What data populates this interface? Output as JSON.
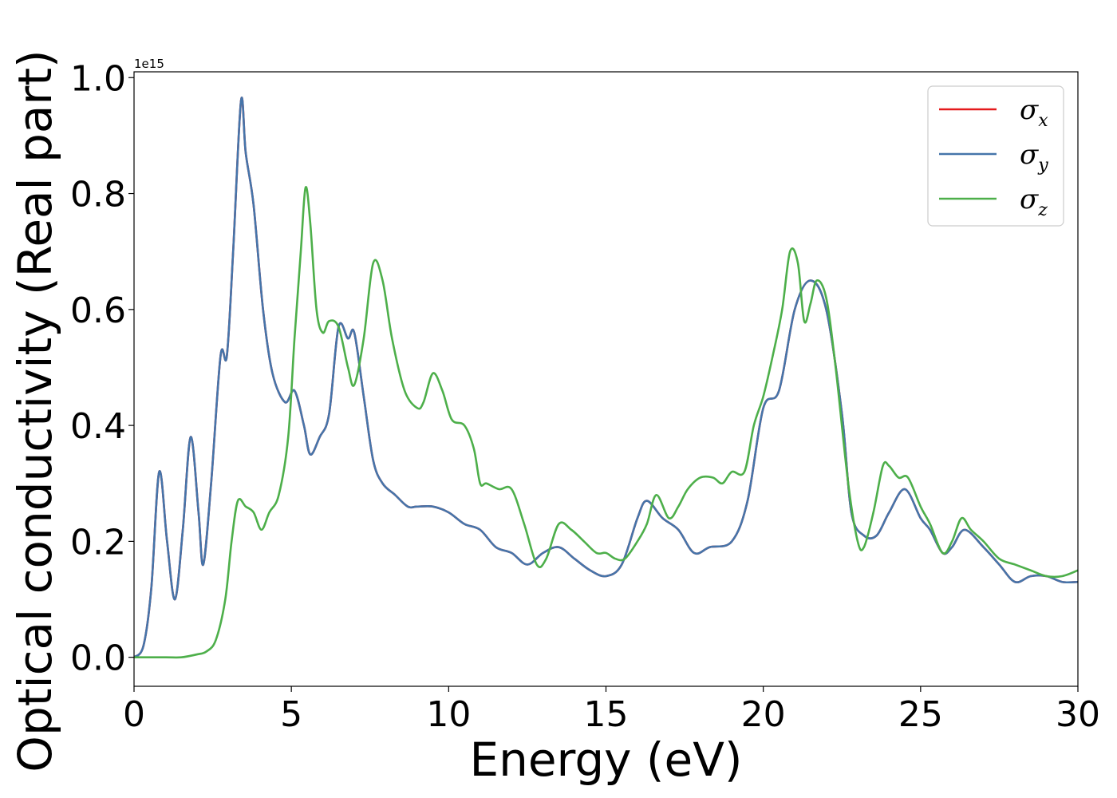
{
  "chart_data": {
    "type": "line",
    "xlabel": "Energy (eV)",
    "ylabel": "Optical conductivity (Real part)",
    "y_offset_text": "1e15",
    "xlim": [
      0,
      30
    ],
    "ylim": [
      -0.05,
      1.01
    ],
    "y_scale_factor": 1000000000000000.0,
    "xticks": [
      0,
      5,
      10,
      15,
      20,
      25,
      30
    ],
    "yticks": [
      0.0,
      0.2,
      0.4,
      0.6,
      0.8,
      1.0
    ],
    "xtick_labels": [
      "0",
      "5",
      "10",
      "15",
      "20",
      "25",
      "30"
    ],
    "ytick_labels": [
      "0.0",
      "0.2",
      "0.4",
      "0.6",
      "0.8",
      "1.0"
    ],
    "grid": false,
    "legend_position": "top-right",
    "series": [
      {
        "name": "σx",
        "legend_symbol": "σ",
        "legend_sub": "x",
        "color": "#e41a1c",
        "hidden_under": "σy",
        "x": [
          0,
          0.3,
          0.55,
          0.8,
          1.05,
          1.3,
          1.55,
          1.8,
          2.05,
          2.2,
          2.45,
          2.75,
          2.95,
          3.15,
          3.4,
          3.55,
          3.8,
          4.1,
          4.4,
          4.8,
          5.1,
          5.4,
          5.6,
          5.9,
          6.2,
          6.5,
          6.8,
          7.0,
          7.3,
          7.6,
          7.9,
          8.3,
          8.7,
          9.0,
          9.5,
          10.0,
          10.5,
          11.0,
          11.5,
          12.0,
          12.5,
          13.0,
          13.5,
          14.0,
          14.5,
          15.0,
          15.5,
          16.0,
          16.3,
          16.8,
          17.3,
          17.8,
          18.3,
          19.0,
          19.5,
          20.0,
          20.5,
          21.0,
          21.5,
          22.0,
          22.5,
          22.8,
          23.2,
          23.6,
          24.0,
          24.5,
          25.0,
          25.3,
          25.7,
          26.0,
          26.4,
          27.0,
          27.5,
          28.0,
          28.5,
          29.0,
          29.5,
          30.0
        ],
        "y": [
          0.0,
          0.02,
          0.12,
          0.32,
          0.2,
          0.1,
          0.22,
          0.38,
          0.25,
          0.16,
          0.3,
          0.52,
          0.52,
          0.7,
          0.96,
          0.87,
          0.78,
          0.6,
          0.49,
          0.44,
          0.46,
          0.4,
          0.35,
          0.38,
          0.42,
          0.57,
          0.55,
          0.56,
          0.45,
          0.34,
          0.3,
          0.28,
          0.26,
          0.26,
          0.26,
          0.25,
          0.23,
          0.22,
          0.19,
          0.18,
          0.16,
          0.18,
          0.19,
          0.17,
          0.15,
          0.14,
          0.16,
          0.24,
          0.27,
          0.24,
          0.22,
          0.18,
          0.19,
          0.2,
          0.27,
          0.43,
          0.46,
          0.6,
          0.65,
          0.6,
          0.42,
          0.25,
          0.21,
          0.21,
          0.25,
          0.29,
          0.24,
          0.22,
          0.18,
          0.19,
          0.22,
          0.19,
          0.16,
          0.13,
          0.14,
          0.14,
          0.13,
          0.13
        ]
      },
      {
        "name": "σy",
        "legend_symbol": "σ",
        "legend_sub": "y",
        "color": "#4575aa",
        "x": [
          0,
          0.3,
          0.55,
          0.8,
          1.05,
          1.3,
          1.55,
          1.8,
          2.05,
          2.2,
          2.45,
          2.75,
          2.95,
          3.15,
          3.4,
          3.55,
          3.8,
          4.1,
          4.4,
          4.8,
          5.1,
          5.4,
          5.6,
          5.9,
          6.2,
          6.5,
          6.8,
          7.0,
          7.3,
          7.6,
          7.9,
          8.3,
          8.7,
          9.0,
          9.5,
          10.0,
          10.5,
          11.0,
          11.5,
          12.0,
          12.5,
          13.0,
          13.5,
          14.0,
          14.5,
          15.0,
          15.5,
          16.0,
          16.3,
          16.8,
          17.3,
          17.8,
          18.3,
          19.0,
          19.5,
          20.0,
          20.5,
          21.0,
          21.5,
          22.0,
          22.5,
          22.8,
          23.2,
          23.6,
          24.0,
          24.5,
          25.0,
          25.3,
          25.7,
          26.0,
          26.4,
          27.0,
          27.5,
          28.0,
          28.5,
          29.0,
          29.5,
          30.0
        ],
        "y": [
          0.0,
          0.02,
          0.12,
          0.32,
          0.2,
          0.1,
          0.22,
          0.38,
          0.25,
          0.16,
          0.3,
          0.52,
          0.52,
          0.7,
          0.96,
          0.87,
          0.78,
          0.6,
          0.49,
          0.44,
          0.46,
          0.4,
          0.35,
          0.38,
          0.42,
          0.57,
          0.55,
          0.56,
          0.45,
          0.34,
          0.3,
          0.28,
          0.26,
          0.26,
          0.26,
          0.25,
          0.23,
          0.22,
          0.19,
          0.18,
          0.16,
          0.18,
          0.19,
          0.17,
          0.15,
          0.14,
          0.16,
          0.24,
          0.27,
          0.24,
          0.22,
          0.18,
          0.19,
          0.2,
          0.27,
          0.43,
          0.46,
          0.6,
          0.65,
          0.6,
          0.42,
          0.25,
          0.21,
          0.21,
          0.25,
          0.29,
          0.24,
          0.22,
          0.18,
          0.19,
          0.22,
          0.19,
          0.16,
          0.13,
          0.14,
          0.14,
          0.13,
          0.13
        ]
      },
      {
        "name": "σz",
        "legend_symbol": "σ",
        "legend_sub": "z",
        "color": "#4daf4a",
        "x": [
          0,
          1.0,
          1.5,
          2.0,
          2.3,
          2.6,
          2.9,
          3.1,
          3.3,
          3.55,
          3.8,
          4.05,
          4.3,
          4.6,
          4.9,
          5.1,
          5.3,
          5.45,
          5.6,
          5.8,
          6.0,
          6.2,
          6.5,
          6.8,
          7.0,
          7.3,
          7.6,
          7.9,
          8.2,
          8.6,
          9.0,
          9.2,
          9.5,
          9.8,
          10.1,
          10.5,
          10.8,
          11.0,
          11.2,
          11.6,
          12.0,
          12.4,
          12.8,
          13.1,
          13.5,
          13.9,
          14.3,
          14.7,
          15.0,
          15.3,
          15.6,
          16.0,
          16.3,
          16.6,
          17.0,
          17.3,
          17.6,
          18.0,
          18.4,
          18.7,
          19.0,
          19.4,
          19.7,
          20.0,
          20.3,
          20.6,
          20.85,
          21.1,
          21.3,
          21.5,
          21.7,
          22.0,
          22.3,
          22.7,
          23.0,
          23.2,
          23.5,
          23.8,
          24.0,
          24.3,
          24.6,
          25.0,
          25.3,
          25.7,
          26.0,
          26.3,
          26.6,
          27.0,
          27.5,
          28.0,
          28.5,
          29.0,
          29.5,
          30.0
        ],
        "y": [
          0.0,
          0.0,
          0.0,
          0.005,
          0.01,
          0.03,
          0.1,
          0.2,
          0.27,
          0.26,
          0.25,
          0.22,
          0.25,
          0.28,
          0.38,
          0.55,
          0.7,
          0.81,
          0.75,
          0.6,
          0.56,
          0.58,
          0.57,
          0.5,
          0.47,
          0.55,
          0.68,
          0.65,
          0.55,
          0.46,
          0.43,
          0.44,
          0.49,
          0.46,
          0.41,
          0.4,
          0.36,
          0.3,
          0.3,
          0.29,
          0.29,
          0.23,
          0.16,
          0.17,
          0.23,
          0.22,
          0.2,
          0.18,
          0.18,
          0.17,
          0.17,
          0.2,
          0.23,
          0.28,
          0.24,
          0.26,
          0.29,
          0.31,
          0.31,
          0.3,
          0.32,
          0.32,
          0.4,
          0.45,
          0.52,
          0.6,
          0.7,
          0.68,
          0.58,
          0.61,
          0.65,
          0.62,
          0.5,
          0.3,
          0.2,
          0.19,
          0.25,
          0.33,
          0.33,
          0.31,
          0.31,
          0.26,
          0.23,
          0.18,
          0.2,
          0.24,
          0.22,
          0.2,
          0.17,
          0.16,
          0.15,
          0.14,
          0.14,
          0.15
        ]
      }
    ]
  }
}
